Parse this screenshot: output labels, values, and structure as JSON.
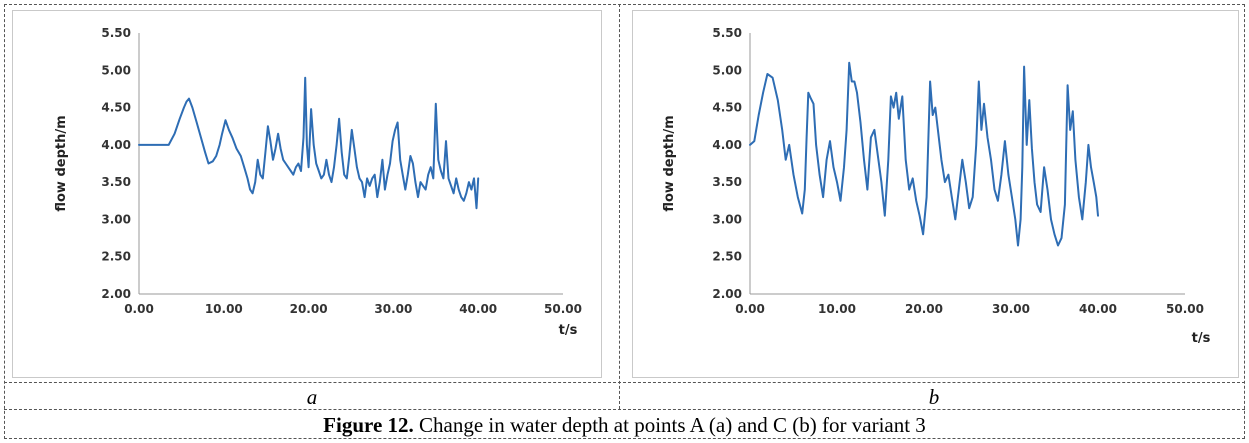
{
  "figure": {
    "caption_label": "Figure 12.",
    "caption_text": "Change in water depth at points A (a) and C (b) for variant 3"
  },
  "chart_data": [
    {
      "type": "line",
      "panel_label": "a",
      "xlabel": "t/s",
      "ylabel": "flow depth/m",
      "xlim": [
        0,
        50
      ],
      "ylim": [
        2,
        5.5
      ],
      "x_ticks": [
        "0.00",
        "10.00",
        "20.00",
        "30.00",
        "40.00",
        "50.00"
      ],
      "y_ticks": [
        "2.00",
        "2.50",
        "3.00",
        "3.50",
        "4.00",
        "4.50",
        "5.00",
        "5.50"
      ],
      "grid": false,
      "series": [
        {
          "color": "#2e6db4",
          "x": [
            0,
            3.5,
            4.2,
            4.8,
            5.3,
            5.6,
            5.9,
            6.3,
            6.8,
            7.3,
            7.8,
            8.2,
            8.7,
            9.1,
            9.5,
            9.8,
            10.2,
            10.6,
            11.0,
            11.5,
            12.0,
            12.4,
            12.8,
            13.1,
            13.4,
            13.7,
            14.0,
            14.3,
            14.6,
            14.9,
            15.2,
            15.5,
            15.8,
            16.1,
            16.4,
            16.7,
            17.0,
            17.3,
            17.6,
            17.9,
            18.2,
            18.5,
            18.8,
            19.1,
            19.4,
            19.6,
            19.8,
            20.0,
            20.3,
            20.6,
            20.9,
            21.2,
            21.5,
            21.8,
            22.1,
            22.4,
            22.7,
            23.0,
            23.3,
            23.6,
            23.9,
            24.2,
            24.5,
            24.8,
            25.1,
            25.4,
            25.7,
            26.0,
            26.3,
            26.6,
            26.9,
            27.2,
            27.5,
            27.8,
            28.1,
            28.4,
            28.7,
            29.0,
            29.3,
            29.6,
            29.9,
            30.2,
            30.5,
            30.8,
            31.1,
            31.4,
            31.7,
            32.0,
            32.3,
            32.6,
            32.9,
            33.2,
            33.5,
            33.8,
            34.1,
            34.4,
            34.7,
            35.0,
            35.3,
            35.6,
            35.9,
            36.2,
            36.5,
            36.8,
            37.1,
            37.4,
            37.7,
            38.0,
            38.3,
            38.6,
            38.9,
            39.2,
            39.5,
            39.8,
            40.0
          ],
          "y": [
            4.0,
            4.0,
            4.15,
            4.35,
            4.5,
            4.58,
            4.62,
            4.5,
            4.3,
            4.1,
            3.9,
            3.75,
            3.78,
            3.85,
            4.0,
            4.15,
            4.33,
            4.2,
            4.1,
            3.95,
            3.85,
            3.7,
            3.55,
            3.4,
            3.35,
            3.5,
            3.8,
            3.6,
            3.55,
            3.9,
            4.25,
            4.05,
            3.8,
            3.95,
            4.15,
            3.95,
            3.8,
            3.75,
            3.7,
            3.65,
            3.6,
            3.7,
            3.75,
            3.65,
            4.1,
            4.9,
            4.0,
            3.7,
            4.48,
            4.0,
            3.75,
            3.65,
            3.55,
            3.6,
            3.8,
            3.6,
            3.5,
            3.7,
            4.0,
            4.35,
            3.9,
            3.6,
            3.55,
            3.85,
            4.2,
            3.95,
            3.7,
            3.55,
            3.5,
            3.3,
            3.55,
            3.45,
            3.55,
            3.6,
            3.3,
            3.5,
            3.8,
            3.4,
            3.6,
            3.75,
            4.05,
            4.2,
            4.3,
            3.8,
            3.6,
            3.4,
            3.6,
            3.85,
            3.75,
            3.5,
            3.3,
            3.5,
            3.45,
            3.4,
            3.6,
            3.7,
            3.55,
            4.55,
            3.8,
            3.65,
            3.55,
            4.05,
            3.55,
            3.45,
            3.35,
            3.55,
            3.4,
            3.3,
            3.25,
            3.35,
            3.5,
            3.4,
            3.55,
            3.15,
            3.55
          ]
        }
      ]
    },
    {
      "type": "line",
      "panel_label": "b",
      "xlabel": "t/s",
      "ylabel": "flow depth/m",
      "xlim": [
        0,
        50
      ],
      "ylim": [
        2,
        5.5
      ],
      "x_ticks": [
        "0.00",
        "10.00",
        "20.00",
        "30.00",
        "40.00",
        "50.00"
      ],
      "y_ticks": [
        "2.00",
        "2.50",
        "3.00",
        "3.50",
        "4.00",
        "4.50",
        "5.00",
        "5.50"
      ],
      "grid": false,
      "series": [
        {
          "color": "#2e6db4",
          "x": [
            0,
            0.5,
            1.0,
            1.5,
            2.0,
            2.6,
            3.2,
            3.7,
            4.1,
            4.5,
            5.0,
            5.5,
            6.0,
            6.3,
            6.5,
            6.7,
            7.0,
            7.3,
            7.6,
            8.0,
            8.4,
            8.8,
            9.2,
            9.6,
            10.0,
            10.4,
            10.8,
            11.1,
            11.4,
            11.7,
            12.0,
            12.3,
            12.7,
            13.1,
            13.5,
            13.9,
            14.3,
            14.7,
            15.1,
            15.5,
            15.9,
            16.2,
            16.5,
            16.8,
            17.1,
            17.5,
            17.9,
            18.3,
            18.7,
            19.1,
            19.5,
            19.9,
            20.3,
            20.7,
            21.0,
            21.3,
            21.6,
            22.0,
            22.4,
            22.8,
            23.2,
            23.6,
            24.0,
            24.4,
            24.8,
            25.2,
            25.6,
            26.0,
            26.3,
            26.6,
            26.9,
            27.3,
            27.7,
            28.1,
            28.5,
            28.9,
            29.3,
            29.7,
            30.1,
            30.5,
            30.8,
            31.1,
            31.3,
            31.5,
            31.8,
            32.1,
            32.4,
            32.7,
            33.0,
            33.4,
            33.8,
            34.2,
            34.6,
            35.0,
            35.4,
            35.8,
            36.2,
            36.5,
            36.8,
            37.1,
            37.4,
            37.8,
            38.2,
            38.6,
            38.9,
            39.2,
            39.5,
            39.8,
            40.0
          ],
          "y": [
            4.0,
            4.05,
            4.4,
            4.7,
            4.95,
            4.9,
            4.6,
            4.2,
            3.8,
            4.0,
            3.6,
            3.3,
            3.08,
            3.4,
            4.1,
            4.7,
            4.62,
            4.55,
            4.0,
            3.6,
            3.3,
            3.8,
            4.05,
            3.7,
            3.5,
            3.25,
            3.7,
            4.2,
            5.1,
            4.85,
            4.85,
            4.7,
            4.3,
            3.8,
            3.4,
            4.1,
            4.2,
            3.85,
            3.5,
            3.05,
            3.8,
            4.65,
            4.5,
            4.7,
            4.35,
            4.65,
            3.8,
            3.4,
            3.55,
            3.25,
            3.05,
            2.8,
            3.3,
            4.85,
            4.4,
            4.5,
            4.2,
            3.8,
            3.5,
            3.6,
            3.3,
            3.0,
            3.4,
            3.8,
            3.5,
            3.15,
            3.3,
            4.0,
            4.85,
            4.2,
            4.55,
            4.1,
            3.8,
            3.4,
            3.25,
            3.6,
            4.05,
            3.6,
            3.3,
            3.0,
            2.65,
            3.0,
            3.7,
            5.05,
            4.0,
            4.6,
            3.95,
            3.5,
            3.2,
            3.1,
            3.7,
            3.4,
            3.0,
            2.8,
            2.65,
            2.75,
            3.2,
            4.8,
            4.2,
            4.45,
            3.8,
            3.3,
            3.0,
            3.5,
            4.0,
            3.7,
            3.5,
            3.3,
            3.05
          ]
        }
      ]
    }
  ]
}
